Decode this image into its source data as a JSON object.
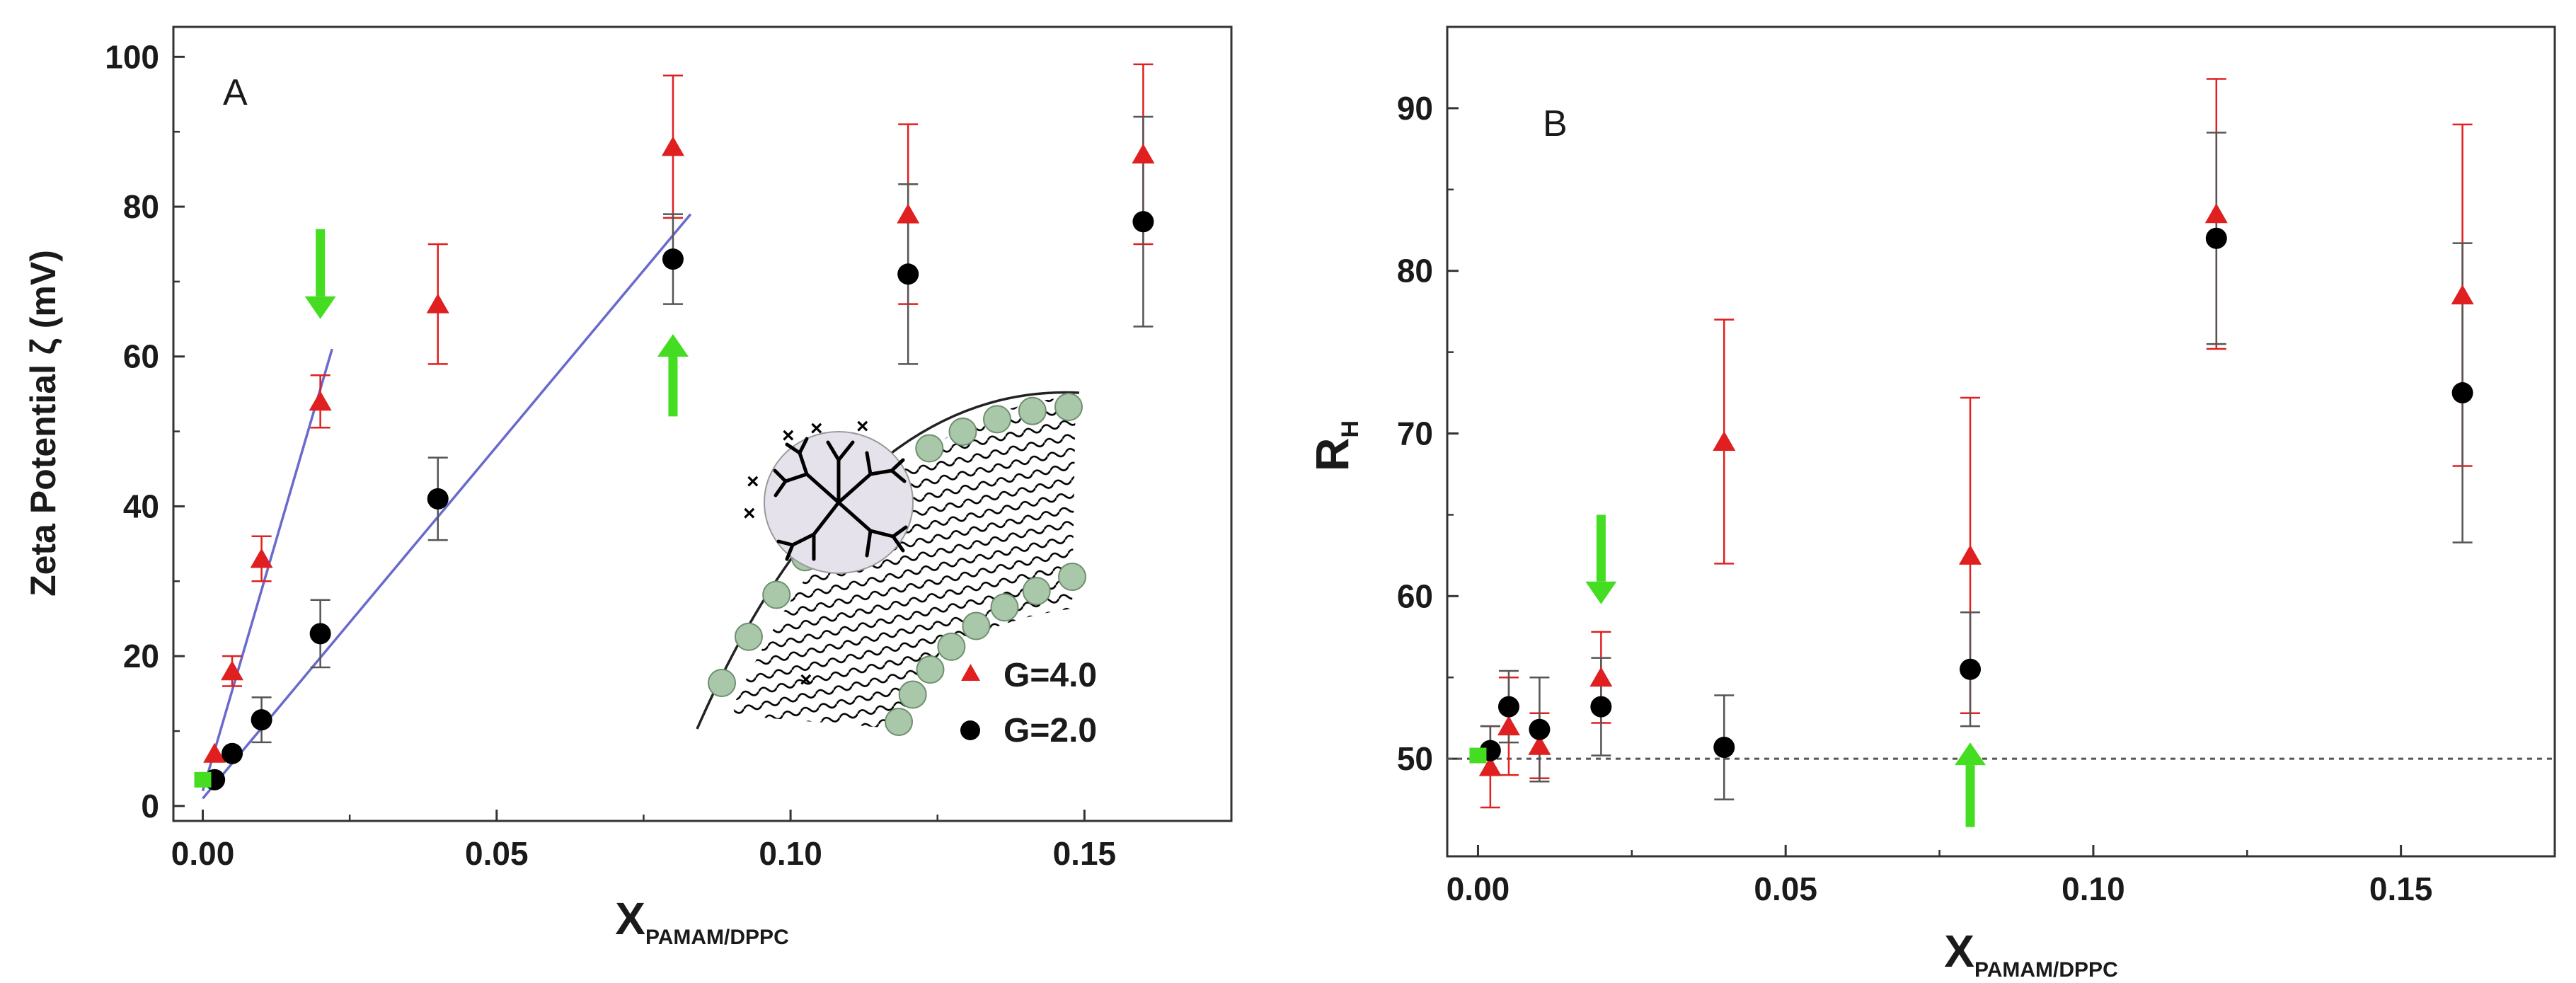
{
  "chart_data": [
    {
      "panel": "A",
      "type": "scatter",
      "xlabel": "X",
      "xlabel_sub": "PAMAM/DPPC",
      "ylabel": "Zeta Potential  ζ (mV)",
      "xlim": [
        -0.005,
        0.175
      ],
      "ylim": [
        -2,
        104
      ],
      "xticks": [
        0.0,
        0.05,
        0.1,
        0.15
      ],
      "xtick_labels": [
        "0.00",
        "0.05",
        "0.10",
        "0.15"
      ],
      "yticks": [
        0,
        20,
        40,
        60,
        80,
        100
      ],
      "ytick_labels": [
        "0",
        "20",
        "40",
        "60",
        "80",
        "100"
      ],
      "legend_position": "bottom-right",
      "series": [
        {
          "name": "G=4.0",
          "marker": "triangle",
          "color": "#e02020",
          "errorbar_color": "#e02020",
          "points": [
            {
              "x": 0.002,
              "y": 7,
              "err": 0
            },
            {
              "x": 0.005,
              "y": 18,
              "err": 2
            },
            {
              "x": 0.01,
              "y": 33,
              "err": 3
            },
            {
              "x": 0.02,
              "y": 54,
              "err": 3.5
            },
            {
              "x": 0.04,
              "y": 67,
              "err": 8
            },
            {
              "x": 0.08,
              "y": 88,
              "err": 9.5
            },
            {
              "x": 0.12,
              "y": 79,
              "err": 12
            },
            {
              "x": 0.16,
              "y": 87,
              "err": 12
            }
          ]
        },
        {
          "name": "G=2.0",
          "marker": "circle",
          "color": "#000000",
          "errorbar_color": "#555555",
          "points": [
            {
              "x": 0.002,
              "y": 3.5,
              "err": 0
            },
            {
              "x": 0.005,
              "y": 7,
              "err": 0
            },
            {
              "x": 0.01,
              "y": 11.5,
              "err": 3
            },
            {
              "x": 0.02,
              "y": 23,
              "err": 4.5
            },
            {
              "x": 0.04,
              "y": 41,
              "err": 5.5
            },
            {
              "x": 0.08,
              "y": 73,
              "err": 6
            },
            {
              "x": 0.12,
              "y": 71,
              "err": 12
            },
            {
              "x": 0.16,
              "y": 78,
              "err": 14
            }
          ]
        }
      ],
      "extra_points": [
        {
          "x": 0.0,
          "y": 3.5,
          "color": "#44dd22",
          "marker": "square"
        }
      ],
      "fit_lines": [
        {
          "x": [
            0.0,
            0.022
          ],
          "y": [
            2,
            61
          ],
          "color": "#6a6acc"
        },
        {
          "x": [
            0.0,
            0.083
          ],
          "y": [
            1,
            79
          ],
          "color": "#6a6acc"
        }
      ],
      "arrows": [
        {
          "x": 0.02,
          "y_tail": 77,
          "y_head": 65,
          "direction": "down",
          "color": "#44dd22"
        },
        {
          "x": 0.08,
          "y_tail": 52,
          "y_head": 63,
          "direction": "up",
          "color": "#44dd22"
        }
      ],
      "inset": "dendrimer-membrane-schematic"
    },
    {
      "panel": "B",
      "type": "scatter",
      "xlabel": "X",
      "xlabel_sub": "PAMAM/DPPC",
      "ylabel": "R",
      "ylabel_sub": "H",
      "xlim": [
        -0.005,
        0.175
      ],
      "ylim": [
        44,
        95
      ],
      "xticks": [
        0.0,
        0.05,
        0.1,
        0.15
      ],
      "xtick_labels": [
        "0.00",
        "0.05",
        "0.10",
        "0.15"
      ],
      "yticks": [
        50,
        60,
        70,
        80,
        90
      ],
      "ytick_labels": [
        "50",
        "60",
        "70",
        "80",
        "90"
      ],
      "series": [
        {
          "name": "G=4.0",
          "marker": "triangle",
          "color": "#e02020",
          "errorbar_color": "#e02020",
          "points": [
            {
              "x": 0.002,
              "y": 49.5,
              "err": 2.5
            },
            {
              "x": 0.005,
              "y": 52,
              "err": 3
            },
            {
              "x": 0.01,
              "y": 50.8,
              "err": 2
            },
            {
              "x": 0.02,
              "y": 55,
              "err": 2.8
            },
            {
              "x": 0.04,
              "y": 69.5,
              "err": 7.5
            },
            {
              "x": 0.08,
              "y": 62.5,
              "err": 9.7
            },
            {
              "x": 0.12,
              "y": 83.5,
              "err": 8.3
            },
            {
              "x": 0.16,
              "y": 78.5,
              "err": 10.5
            }
          ]
        },
        {
          "name": "G=2.0",
          "marker": "circle",
          "color": "#000000",
          "errorbar_color": "#555555",
          "points": [
            {
              "x": 0.002,
              "y": 50.5,
              "err": 1.5
            },
            {
              "x": 0.005,
              "y": 53.2,
              "err": 2.2
            },
            {
              "x": 0.01,
              "y": 51.8,
              "err": 3.2
            },
            {
              "x": 0.02,
              "y": 53.2,
              "err": 3
            },
            {
              "x": 0.04,
              "y": 50.7,
              "err": 3.2
            },
            {
              "x": 0.08,
              "y": 55.5,
              "err": 3.5
            },
            {
              "x": 0.12,
              "y": 82,
              "err": 6.5
            },
            {
              "x": 0.16,
              "y": 72.5,
              "err": 9.2
            }
          ]
        }
      ],
      "extra_points": [
        {
          "x": 0.0,
          "y": 50.2,
          "color": "#44dd22",
          "marker": "square"
        }
      ],
      "reference_lines": [
        {
          "y": 50,
          "style": "dotted",
          "color": "#555555"
        }
      ],
      "arrows": [
        {
          "x": 0.02,
          "y_tail": 65,
          "y_head": 59.5,
          "direction": "down",
          "color": "#44dd22"
        },
        {
          "x": 0.08,
          "y_tail": 45.8,
          "y_head": 51,
          "direction": "up",
          "color": "#44dd22"
        }
      ]
    }
  ],
  "legend": [
    {
      "label": "G=4.0",
      "marker": "triangle",
      "color": "#e02020"
    },
    {
      "label": "G=2.0",
      "marker": "circle",
      "color": "#000000"
    }
  ]
}
